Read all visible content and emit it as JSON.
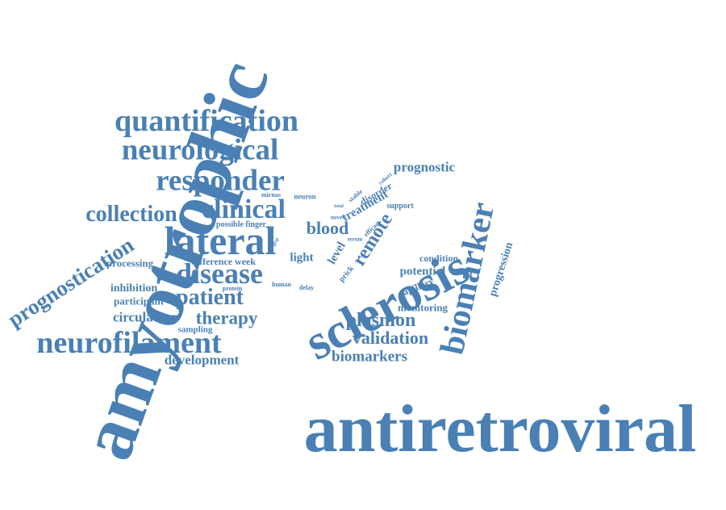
{
  "colors": {
    "text": "#4a80b4",
    "background": "#ffffff"
  },
  "words": [
    {
      "id": "w-amyotrophic",
      "text": "amyotrophic"
    },
    {
      "id": "w-antiretroviral",
      "text": "antiretroviral"
    },
    {
      "id": "w-sclerosis",
      "text": "sclerosis"
    },
    {
      "id": "w-biomarker",
      "text": "biomarker"
    },
    {
      "id": "w-quantification",
      "text": "quantification"
    },
    {
      "id": "w-neurological",
      "text": "neurological"
    },
    {
      "id": "w-responder",
      "text": "responder"
    },
    {
      "id": "w-clinical",
      "text": "clinical"
    },
    {
      "id": "w-collection",
      "text": "collection"
    },
    {
      "id": "w-lateral",
      "text": "lateral"
    },
    {
      "id": "w-disease",
      "text": "disease"
    },
    {
      "id": "w-patient",
      "text": "patient"
    },
    {
      "id": "w-therapy",
      "text": "therapy"
    },
    {
      "id": "w-neurofilament",
      "text": "neurofilament"
    },
    {
      "id": "w-prognostication",
      "text": "prognostication"
    },
    {
      "id": "w-development",
      "text": "development"
    },
    {
      "id": "w-circulating",
      "text": "circulating"
    },
    {
      "id": "w-inhibition",
      "text": "inhibition"
    },
    {
      "id": "w-participant",
      "text": "participant"
    },
    {
      "id": "w-processing",
      "text": "processing"
    },
    {
      "id": "w-sampling",
      "text": "sampling"
    },
    {
      "id": "w-difference-week",
      "text": "difference week"
    },
    {
      "id": "w-possible-finger",
      "text": "possible finger"
    },
    {
      "id": "w-mirnas",
      "text": "mirnas"
    },
    {
      "id": "w-protein",
      "text": "protein"
    },
    {
      "id": "w-human",
      "text": "human"
    },
    {
      "id": "w-light",
      "text": "light"
    },
    {
      "id": "w-blood",
      "text": "blood"
    },
    {
      "id": "w-remote",
      "text": "remote"
    },
    {
      "id": "w-level",
      "text": "level"
    },
    {
      "id": "w-prick",
      "text": "prick"
    },
    {
      "id": "w-delay",
      "text": "delay"
    },
    {
      "id": "w-treatment",
      "text": "treatment"
    },
    {
      "id": "w-disorder",
      "text": "disorder"
    },
    {
      "id": "w-neuron",
      "text": "neuron"
    },
    {
      "id": "w-novel",
      "text": "novel"
    },
    {
      "id": "w-stable",
      "text": "stable"
    },
    {
      "id": "w-cohort",
      "text": "cohort"
    },
    {
      "id": "w-serum",
      "text": "serum"
    },
    {
      "id": "w-efficacy",
      "text": "efficacy"
    },
    {
      "id": "w-support",
      "text": "support"
    },
    {
      "id": "w-prognostic",
      "text": "prognostic"
    },
    {
      "id": "w-condition",
      "text": "condition"
    },
    {
      "id": "w-potential",
      "text": "potential"
    },
    {
      "id": "w-capillary",
      "text": "capillary"
    },
    {
      "id": "w-monitoring",
      "text": "monitoring"
    },
    {
      "id": "w-plasmon",
      "text": "plasmon"
    },
    {
      "id": "w-validation",
      "text": "validation"
    },
    {
      "id": "w-biomarkers",
      "text": "biomarkers"
    },
    {
      "id": "w-progression",
      "text": "progression"
    },
    {
      "id": "w-gfap",
      "text": "gfap"
    },
    {
      "id": "w-total",
      "text": "total"
    }
  ]
}
